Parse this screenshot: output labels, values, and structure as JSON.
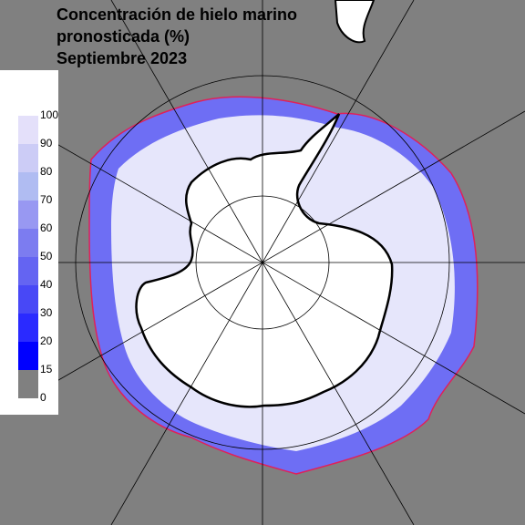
{
  "header": {
    "title": [
      "Concentración de hielo marino",
      "pronosticada (%)",
      "Septiembre 2023"
    ]
  },
  "legend": {
    "ticks": [
      0,
      15,
      20,
      30,
      40,
      50,
      60,
      70,
      80,
      90,
      100
    ],
    "colors": [
      "#808080",
      "#0000ff",
      "#2a2aff",
      "#4848f6",
      "#6464f2",
      "#7c7cf0",
      "#9898f2",
      "#b0bcf2",
      "#ccccf6",
      "#e4e0fa",
      "#ffffff"
    ]
  }
}
